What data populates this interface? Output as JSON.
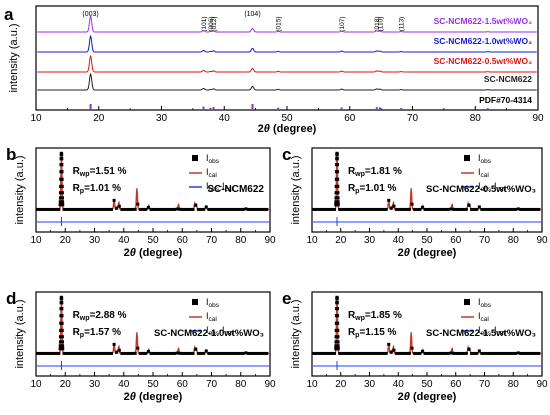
{
  "colors": {
    "observed": "#000000",
    "calculated": "#c0392b",
    "difference": "#1f3fff",
    "purple": "#9b30e8",
    "blue": "#1818d8",
    "red": "#e01414",
    "gray": "#222222",
    "pdf": "#7b3fbf"
  },
  "chart_data": [
    {
      "panel": "a",
      "type": "line",
      "xlabel_pre": "2",
      "xlabel_theta": "θ",
      "xlabel_post": " (degree)",
      "ylabel": "intensity (a.u.)",
      "xlim": [
        10,
        90
      ],
      "xticks": [
        10,
        20,
        30,
        40,
        50,
        60,
        70,
        80,
        90
      ],
      "series": [
        {
          "name": "SC-NCM622-1.5wt%WO₃",
          "color": "#9b30e8"
        },
        {
          "name": "SC-NCM622-1.0wt%WO₃",
          "color": "#1818d8"
        },
        {
          "name": "SC-NCM622-0.5wt%WO₃",
          "color": "#e01414"
        },
        {
          "name": "SC-NCM622",
          "color": "#222222"
        },
        {
          "name": "PDF#70-4314",
          "color": "#7b3fbf"
        }
      ],
      "peaks": [
        {
          "label": "(003)",
          "x": 18.7
        },
        {
          "label": "(101)",
          "x": 36.7
        },
        {
          "label": "(006)",
          "x": 37.8
        },
        {
          "label": "(012)",
          "x": 38.3
        },
        {
          "label": "(104)",
          "x": 44.5
        },
        {
          "label": "(015)",
          "x": 48.6
        },
        {
          "label": "(107)",
          "x": 58.7
        },
        {
          "label": "(018)",
          "x": 64.3
        },
        {
          "label": "(110)",
          "x": 64.8
        },
        {
          "label": "(113)",
          "x": 68.2
        }
      ]
    },
    {
      "panel": "b",
      "type": "line",
      "sample": "SC-NCM622",
      "rwp": "=1.51 %",
      "rp": "=1.01 %",
      "legend": [
        "obs",
        "cal",
        "obs",
        "cal"
      ],
      "xlim": [
        10,
        90
      ],
      "xticks": [
        10,
        20,
        30,
        40,
        50,
        60,
        70,
        80,
        90
      ]
    },
    {
      "panel": "c",
      "type": "line",
      "sample": "SC-NCM622-0.5wt%WO₃",
      "rwp": "=1.81 %",
      "rp": "=1.01 %",
      "xlim": [
        10,
        90
      ],
      "xticks": [
        10,
        20,
        30,
        40,
        50,
        60,
        70,
        80,
        90
      ]
    },
    {
      "panel": "d",
      "type": "line",
      "sample": "SC-NCM622-1.0wt%WO₃",
      "rwp": "=2.88 %",
      "rp": "=1.57 %",
      "xlim": [
        10,
        90
      ],
      "xticks": [
        10,
        20,
        30,
        40,
        50,
        60,
        70,
        80,
        90
      ]
    },
    {
      "panel": "e",
      "type": "line",
      "sample": "SC-NCM622-1.5wt%WO₃",
      "rwp": "=1.85 %",
      "rp": "=1.15 %",
      "xlim": [
        10,
        90
      ],
      "xticks": [
        10,
        20,
        30,
        40,
        50,
        60,
        70,
        80,
        90
      ]
    }
  ],
  "labels": {
    "a": "a",
    "b": "b",
    "c": "c",
    "d": "d",
    "e": "e",
    "ylabel": "intensity (a.u.)",
    "R": "R",
    "wp": "wp",
    "p": "p",
    "I": "I",
    "obs": "obs",
    "cal": "cal",
    "obs_cal_sep": "-I"
  }
}
